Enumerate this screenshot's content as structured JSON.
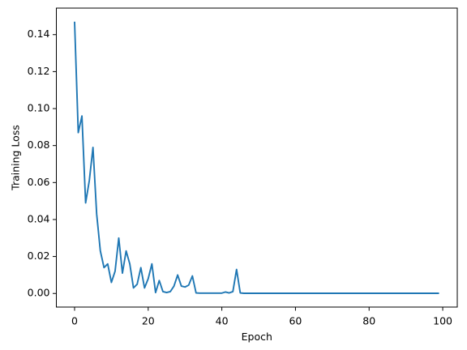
{
  "chart_data": {
    "type": "line",
    "xlabel": "Epoch",
    "ylabel": "Training Loss",
    "x": [
      0,
      1,
      2,
      3,
      4,
      5,
      6,
      7,
      8,
      9,
      10,
      11,
      12,
      13,
      14,
      15,
      16,
      17,
      18,
      19,
      20,
      21,
      22,
      23,
      24,
      25,
      26,
      27,
      28,
      29,
      30,
      31,
      32,
      33,
      34,
      35,
      36,
      37,
      38,
      39,
      40,
      41,
      42,
      43,
      44,
      45,
      46,
      47,
      48,
      49,
      50,
      51,
      52,
      53,
      54,
      55,
      56,
      57,
      58,
      59,
      60,
      61,
      62,
      63,
      64,
      65,
      66,
      67,
      68,
      69,
      70,
      71,
      72,
      73,
      74,
      75,
      76,
      77,
      78,
      79,
      80,
      81,
      82,
      83,
      84,
      85,
      86,
      87,
      88,
      89,
      90,
      91,
      92,
      93,
      94,
      95,
      96,
      97,
      98,
      99
    ],
    "series": [
      {
        "name": "Training Loss",
        "color": "#1f77b4",
        "values": [
          0.147,
          0.087,
          0.096,
          0.049,
          0.061,
          0.079,
          0.043,
          0.023,
          0.014,
          0.016,
          0.006,
          0.012,
          0.03,
          0.011,
          0.023,
          0.016,
          0.003,
          0.005,
          0.014,
          0.003,
          0.008,
          0.016,
          0.0005,
          0.007,
          0.001,
          0.0005,
          0.001,
          0.004,
          0.01,
          0.004,
          0.0035,
          0.0045,
          0.0095,
          0.0003,
          0.0002,
          0.0002,
          0.0002,
          0.0002,
          0.0002,
          0.0002,
          0.0002,
          0.0008,
          0.0003,
          0.001,
          0.013,
          0.0003,
          0.0001,
          0.0001,
          0.0001,
          0.0001,
          0.0001,
          0.0001,
          0.0001,
          0.0001,
          0.0001,
          0.0001,
          0.0001,
          0.0001,
          0.0001,
          0.0001,
          0.0001,
          0.0001,
          0.0001,
          0.0001,
          0.0001,
          0.0001,
          0.0001,
          0.0001,
          0.0001,
          0.0001,
          0.0001,
          0.0001,
          0.0001,
          0.0001,
          0.0001,
          0.0001,
          0.0001,
          0.0001,
          0.0001,
          0.0001,
          0.0001,
          0.0001,
          0.0001,
          0.0001,
          0.0001,
          0.0001,
          0.0001,
          0.0001,
          0.0001,
          0.0001,
          0.0001,
          0.0001,
          0.0001,
          0.0001,
          0.0001,
          0.0001,
          0.0001,
          0.0001,
          0.0001,
          0.0001
        ]
      }
    ],
    "xlim": [
      -4.95,
      103.95
    ],
    "xticks": [
      0,
      20,
      40,
      60,
      80,
      100
    ],
    "ylim": [
      -0.00735,
      0.15435
    ],
    "yticks": [
      {
        "value": 0,
        "label": "0.00"
      },
      0.02,
      0.04,
      0.06,
      0.08,
      {
        "value": 0.1,
        "label": "0.10"
      },
      0.12,
      0.14
    ],
    "grid": false
  }
}
